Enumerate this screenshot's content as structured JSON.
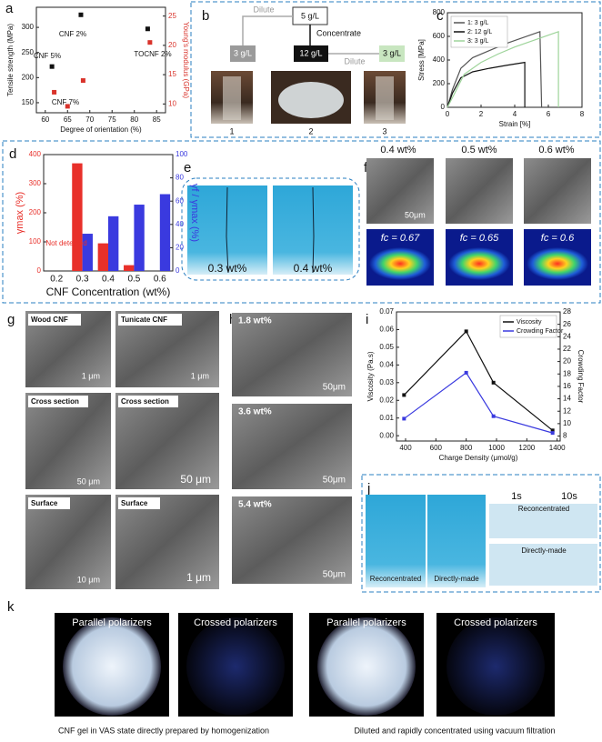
{
  "panel_labels": [
    "a",
    "b",
    "c",
    "d",
    "e",
    "f",
    "g",
    "h",
    "i",
    "j",
    "k"
  ],
  "chart_data": [
    {
      "type": "scatter",
      "xlabel": "Degree of orientation (%)",
      "ylabel": "Tensile strength (MPa)",
      "y2label": "Young's modulus (GPa)",
      "y2color": "#d9332b",
      "xlim": [
        58,
        87
      ],
      "xticks": [
        60,
        65,
        70,
        75,
        80,
        85
      ],
      "ylim": [
        130,
        340
      ],
      "yticks": [
        150,
        200,
        250,
        300
      ],
      "y2lim": [
        8.5,
        26.5
      ],
      "y2ticks": [
        10,
        15,
        20,
        25
      ],
      "series": [
        {
          "color": "#111111",
          "x": [
            61.5,
            68,
            83
          ],
          "values": [
            222,
            325,
            297
          ]
        },
        {
          "color": "#d9332b",
          "axis": "y2",
          "x": [
            62,
            68.5,
            65,
            83.5
          ],
          "values": [
            12,
            14,
            9.6,
            20.5
          ]
        }
      ],
      "annotations": [
        "CNF 5%",
        "CNF 2%",
        "TOCNF 2%",
        "CNF 7%"
      ]
    },
    {
      "type": "line",
      "xlabel": "Strain [%]",
      "ylabel": "Stress [MPa]",
      "xlim": [
        0,
        8
      ],
      "xticks": [
        0,
        2,
        4,
        6,
        8
      ],
      "ylim": [
        0,
        800
      ],
      "yticks": [
        0,
        200,
        400,
        600,
        800
      ],
      "legend": "upper left",
      "series": [
        {
          "name": "1: 3 g/L",
          "color": "#555555",
          "x": [
            0,
            0.3,
            0.8,
            1.5,
            2.5,
            3.5,
            4.5,
            5.5,
            5.6
          ],
          "values": [
            0,
            150,
            330,
            420,
            480,
            540,
            590,
            640,
            0
          ]
        },
        {
          "name": "2: 12 g/L",
          "color": "#111111",
          "x": [
            0,
            0.3,
            0.8,
            1.5,
            2.5,
            3.5,
            4.6,
            4.6
          ],
          "values": [
            0,
            120,
            250,
            300,
            330,
            355,
            380,
            0
          ]
        },
        {
          "name": "3: 3 g/L",
          "color": "#9ed49a",
          "x": [
            0,
            0.4,
            1,
            2,
            3,
            4,
            5,
            6,
            6.6,
            6.6
          ],
          "values": [
            0,
            110,
            280,
            380,
            450,
            510,
            560,
            610,
            640,
            0
          ]
        }
      ]
    },
    {
      "type": "bar",
      "xlabel": "CNF Concentration (wt%)",
      "ylabel": "γmax (%)",
      "y2label": "γf / γmax (%)",
      "ycolor": "#e8302a",
      "y2color": "#3a3adf",
      "categories": [
        "0.2",
        "0.3",
        "0.4",
        "0.5",
        "0.6"
      ],
      "ylim": [
        0,
        400
      ],
      "yticks": [
        0,
        100,
        200,
        300,
        400
      ],
      "y2lim": [
        0,
        100
      ],
      "y2ticks": [
        0,
        20,
        40,
        60,
        80,
        100
      ],
      "series": [
        {
          "color": "#e8302a",
          "values": [
            null,
            370,
            95,
            20,
            null
          ]
        },
        {
          "color": "#3a3adf",
          "axis": "y2",
          "values": [
            null,
            32,
            47,
            57,
            66
          ]
        }
      ],
      "annotations": [
        "Not detected"
      ]
    },
    {
      "type": "line",
      "xlabel": "Charge Density (μmol/g)",
      "ylabel": "Viscosity (Pa.s)",
      "y2label": "Crowding Factor",
      "markers": true,
      "legend": "upper right",
      "xlim": [
        340,
        1420
      ],
      "xticks": [
        400,
        600,
        800,
        1000,
        1200,
        1400
      ],
      "ylim": [
        -0.003,
        0.07
      ],
      "yticks": [
        {
          "value": 0,
          "label": "0.00"
        },
        0.01,
        0.02,
        0.03,
        0.04,
        0.05,
        0.06,
        0.07
      ],
      "y2lim": [
        7.2,
        28
      ],
      "y2ticks": [
        8,
        10,
        12,
        14,
        16,
        18,
        20,
        22,
        24,
        26,
        28
      ],
      "series": [
        {
          "name": "Viscosity",
          "color": "#111111",
          "x": [
            390,
            800,
            980,
            1370
          ],
          "values": [
            0.023,
            0.059,
            0.03,
            0.003
          ]
        },
        {
          "name": "Crowding Factor",
          "color": "#3a3adf",
          "axis": "y2",
          "x": [
            390,
            800,
            980,
            1370
          ],
          "values": [
            10.8,
            18.2,
            11.2,
            8.5
          ]
        }
      ]
    }
  ],
  "panel_b": {
    "source": "5 g/L",
    "dilute_1": "Dilute",
    "concentrate": "Concentrate",
    "boxes": [
      "3 g/L",
      "12 g/L",
      "3 g/L"
    ],
    "dilute_2": "Dilute",
    "sample_numbers": [
      "1",
      "2",
      "3"
    ]
  },
  "panel_e": {
    "labels": [
      "0.3 wt%",
      "0.4 wt%"
    ]
  },
  "panel_f": {
    "labels": [
      "0.4 wt%",
      "0.5 wt%",
      "0.6 wt%"
    ],
    "scale_bar": "50μm",
    "orientation": [
      "fc = 0.67",
      "fc = 0.65",
      "fc = 0.6"
    ]
  },
  "panel_g": {
    "labels": [
      "Wood CNF",
      "Tunicate CNF",
      "Cross section",
      "Cross section",
      "Surface",
      "Surface"
    ],
    "scale_bars": [
      "1 μm",
      "1 μm",
      "50 μm",
      "50 μm",
      "10 μm",
      "1 μm"
    ]
  },
  "panel_h": {
    "labels": [
      "1.8 wt%",
      "3.6 wt%",
      "5.4 wt%"
    ],
    "scale_bars": [
      "50μm",
      "50μm",
      "50μm"
    ]
  },
  "panel_j": {
    "photo_labels": [
      "Reconcentrated",
      "Directly-made"
    ],
    "times": [
      "1s",
      "10s"
    ],
    "rows": [
      "Reconcentrated",
      "Directly-made"
    ]
  },
  "panel_k": {
    "titles": [
      "Parallel polarizers",
      "Crossed polarizers",
      "Parallel polarizers",
      "Crossed polarizers"
    ],
    "captions": [
      "CNF gel in VAS state directly prepared by homogenization",
      "Diluted and rapidly concentrated using vacuum filtration"
    ]
  }
}
